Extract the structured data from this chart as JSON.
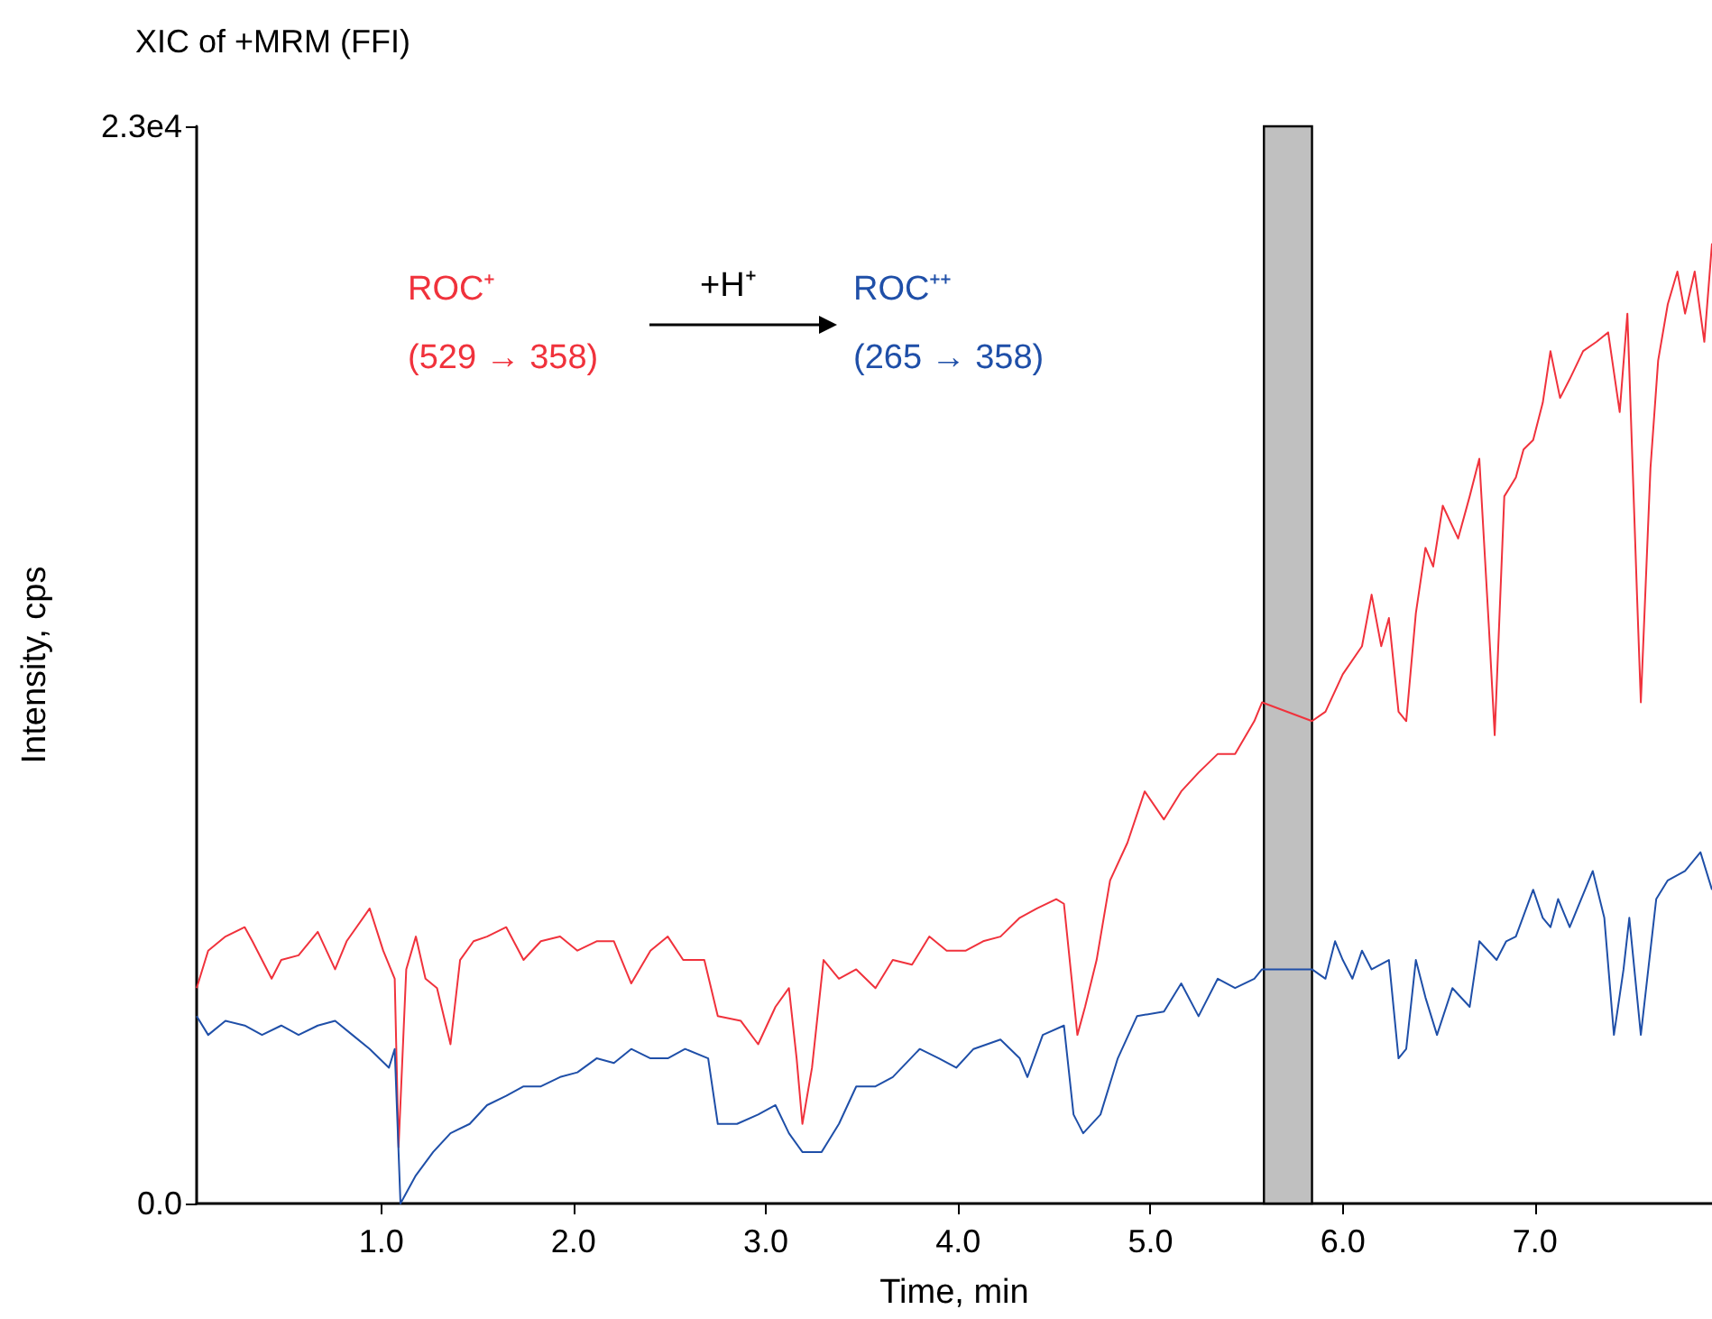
{
  "chart_data": {
    "type": "line",
    "title": "XIC of +MRM (FFI)",
    "xlabel": "Time, min",
    "ylabel": "Intensity, cps",
    "annotations": [
      "ROC⁺",
      "(529 → 358)",
      "+H⁺",
      "ROC⁺⁺",
      "(265 → 358)"
    ],
    "xlim": [
      0.04,
      7.92
    ],
    "ylim": [
      0,
      23000
    ],
    "xticks": [
      {
        "value": 1,
        "label": "1.0"
      },
      {
        "value": 2,
        "label": "2.0"
      },
      {
        "value": 3,
        "label": "3.0"
      },
      {
        "value": 4,
        "label": "4.0"
      },
      {
        "value": 5,
        "label": "5.0"
      },
      {
        "value": 6,
        "label": "6.0"
      },
      {
        "value": 7,
        "label": "7.0"
      }
    ],
    "yticks": [
      {
        "value": 0,
        "label": "0.0"
      },
      {
        "value": 23000,
        "label": "2.3e4"
      }
    ],
    "grid": false,
    "marker": "none",
    "line_style": "solid",
    "bands": [
      {
        "axis": "x",
        "from": 5.59,
        "to": 5.84,
        "color": "#c0c0c0"
      }
    ],
    "series": [
      {
        "color": "#f0323c",
        "x": [
          0.04,
          0.1,
          0.19,
          0.29,
          0.33,
          0.43,
          0.48,
          0.57,
          0.67,
          0.76,
          0.82,
          0.94,
          1.01,
          1.07,
          1.09,
          1.13,
          1.18,
          1.23,
          1.29,
          1.36,
          1.41,
          1.48,
          1.55,
          1.65,
          1.74,
          1.83,
          1.93,
          2.02,
          2.12,
          2.21,
          2.3,
          2.4,
          2.49,
          2.57,
          2.68,
          2.75,
          2.87,
          2.96,
          3.05,
          3.12,
          3.16,
          3.19,
          3.24,
          3.3,
          3.38,
          3.47,
          3.57,
          3.66,
          3.76,
          3.85,
          3.94,
          4.04,
          4.13,
          4.22,
          4.32,
          4.41,
          4.51,
          4.55,
          4.59,
          4.62,
          4.66,
          4.72,
          4.79,
          4.88,
          4.97,
          5.07,
          5.16,
          5.25,
          5.35,
          5.44,
          5.54,
          5.58,
          5.84,
          5.91,
          6.0,
          6.1,
          6.15,
          6.2,
          6.24,
          6.29,
          6.33,
          6.38,
          6.43,
          6.47,
          6.52,
          6.6,
          6.66,
          6.71,
          6.76,
          6.79,
          6.84,
          6.9,
          6.94,
          6.99,
          7.04,
          7.08,
          7.13,
          7.18,
          7.25,
          7.32,
          7.38,
          7.44,
          7.48,
          7.53,
          7.55,
          7.6,
          7.64,
          7.69,
          7.74,
          7.78,
          7.83,
          7.88,
          7.92
        ],
        "values": [
          4600,
          5400,
          5700,
          5900,
          5600,
          4800,
          5200,
          5300,
          5800,
          5000,
          5600,
          6300,
          5400,
          4800,
          1200,
          5000,
          5700,
          4800,
          4600,
          3400,
          5200,
          5600,
          5700,
          5900,
          5200,
          5600,
          5700,
          5400,
          5600,
          5600,
          4700,
          5400,
          5700,
          5200,
          5200,
          4000,
          3900,
          3400,
          4200,
          4600,
          3100,
          1700,
          2900,
          5200,
          4800,
          5000,
          4600,
          5200,
          5100,
          5700,
          5400,
          5400,
          5600,
          5700,
          6100,
          6300,
          6500,
          6400,
          4800,
          3600,
          4200,
          5200,
          6900,
          7700,
          8800,
          8200,
          8800,
          9200,
          9600,
          9600,
          10300,
          10700,
          10300,
          10500,
          11300,
          11900,
          13000,
          11900,
          12500,
          10500,
          10300,
          12600,
          14000,
          13600,
          14900,
          14200,
          15100,
          15900,
          12300,
          10000,
          15100,
          15500,
          16100,
          16300,
          17100,
          18200,
          17200,
          17600,
          18200,
          18400,
          18600,
          16900,
          19000,
          13000,
          10700,
          15700,
          18000,
          19200,
          19900,
          19000,
          19900,
          18400,
          20500
        ]
      },
      {
        "color": "#1f4fa8",
        "x": [
          0.04,
          0.1,
          0.19,
          0.29,
          0.38,
          0.48,
          0.57,
          0.67,
          0.76,
          0.85,
          0.94,
          1.04,
          1.07,
          1.1,
          1.18,
          1.27,
          1.36,
          1.46,
          1.55,
          1.65,
          1.74,
          1.83,
          1.93,
          2.02,
          2.12,
          2.21,
          2.3,
          2.4,
          2.49,
          2.58,
          2.7,
          2.75,
          2.85,
          2.96,
          3.05,
          3.12,
          3.19,
          3.29,
          3.38,
          3.47,
          3.57,
          3.66,
          3.8,
          3.9,
          3.99,
          4.08,
          4.22,
          4.32,
          4.36,
          4.44,
          4.55,
          4.6,
          4.65,
          4.74,
          4.83,
          4.93,
          5.07,
          5.16,
          5.25,
          5.35,
          5.44,
          5.54,
          5.58,
          5.84,
          5.91,
          5.96,
          6.0,
          6.05,
          6.1,
          6.15,
          6.24,
          6.29,
          6.33,
          6.38,
          6.43,
          6.49,
          6.57,
          6.66,
          6.71,
          6.8,
          6.85,
          6.9,
          6.99,
          7.04,
          7.08,
          7.12,
          7.18,
          7.22,
          7.3,
          7.36,
          7.41,
          7.46,
          7.49,
          7.55,
          7.63,
          7.69,
          7.78,
          7.86,
          7.92
        ],
        "values": [
          4000,
          3600,
          3900,
          3800,
          3600,
          3800,
          3600,
          3800,
          3900,
          3600,
          3300,
          2900,
          3300,
          0,
          600,
          1100,
          1500,
          1700,
          2100,
          2300,
          2500,
          2500,
          2700,
          2800,
          3100,
          3000,
          3300,
          3100,
          3100,
          3300,
          3100,
          1700,
          1700,
          1900,
          2100,
          1500,
          1100,
          1100,
          1700,
          2500,
          2500,
          2700,
          3300,
          3100,
          2900,
          3300,
          3500,
          3100,
          2700,
          3600,
          3800,
          1900,
          1500,
          1900,
          3100,
          4000,
          4100,
          4700,
          4000,
          4800,
          4600,
          4800,
          5000,
          5000,
          4800,
          5600,
          5200,
          4800,
          5400,
          5000,
          5200,
          3100,
          3300,
          5200,
          4400,
          3600,
          4600,
          4200,
          5600,
          5200,
          5600,
          5700,
          6700,
          6100,
          5900,
          6500,
          5900,
          6300,
          7100,
          6100,
          3600,
          5000,
          6100,
          3600,
          6500,
          6900,
          7100,
          7500,
          6700
        ]
      }
    ]
  }
}
